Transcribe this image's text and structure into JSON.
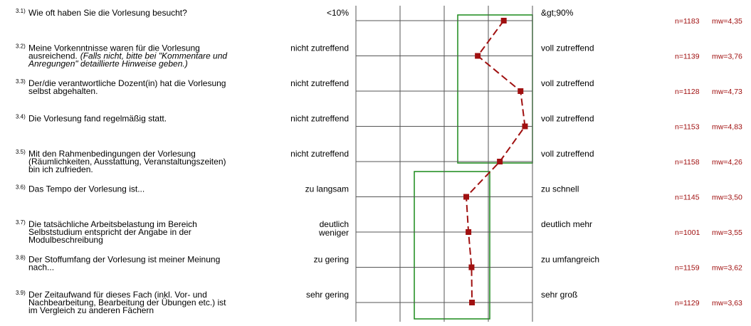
{
  "chart_data": {
    "type": "profile",
    "xlim": [
      1,
      5
    ],
    "xticks": [
      1,
      2,
      3,
      4,
      5
    ],
    "line_color": "#a01010",
    "items": [
      {
        "number": "3.1)",
        "question": [
          "Wie oft haben Sie die Vorlesung besucht?"
        ],
        "left": [
          "<10%"
        ],
        "right": "&gt;90%",
        "n_label": "n=1183",
        "value": 4.35,
        "value_label": "mw=4,35"
      },
      {
        "number": "3.2)",
        "question": [
          "Meine Vorkenntnisse waren für die Vorlesung",
          "ausreichend."
        ],
        "note": [
          "(Falls nicht, bitte bei \"Kommentare und",
          "Anregungen\" detaillierte Hinweise geben.)"
        ],
        "left": [
          "nicht zutreffend"
        ],
        "right": "voll zutreffend",
        "n_label": "n=1139",
        "value": 3.76,
        "value_label": "mw=3,76"
      },
      {
        "number": "3.3)",
        "question": [
          "Der/die verantwortliche Dozent(in) hat die Vorlesung",
          "selbst abgehalten."
        ],
        "left": [
          "nicht zutreffend"
        ],
        "right": "voll zutreffend",
        "n_label": "n=1128",
        "value": 4.73,
        "value_label": "mw=4,73"
      },
      {
        "number": "3.4)",
        "question": [
          "Die Vorlesung fand regelmäßig statt."
        ],
        "left": [
          "nicht zutreffend"
        ],
        "right": "voll zutreffend",
        "n_label": "n=1153",
        "value": 4.83,
        "value_label": "mw=4,83"
      },
      {
        "number": "3.5)",
        "question": [
          "Mit den Rahmenbedingungen der Vorlesung",
          "(Räumlichkeiten, Ausstattung, Veranstaltungszeiten)",
          "bin ich zufrieden."
        ],
        "left": [
          "nicht zutreffend"
        ],
        "right": "voll zutreffend",
        "n_label": "n=1158",
        "value": 4.26,
        "value_label": "mw=4,26"
      },
      {
        "number": "3.6)",
        "question": [
          "Das Tempo der Vorlesung ist..."
        ],
        "left": [
          "zu langsam"
        ],
        "right": "zu schnell",
        "n_label": "n=1145",
        "value": 3.5,
        "value_label": "mw=3,50"
      },
      {
        "number": "3.7)",
        "question": [
          "Die tatsächliche Arbeitsbelastung im Bereich",
          "Selbststudium entspricht der Angabe in der",
          "Modulbeschreibung"
        ],
        "left": [
          "deutlich",
          "weniger"
        ],
        "right": "deutlich mehr",
        "n_label": "n=1001",
        "value": 3.55,
        "value_label": "mw=3,55"
      },
      {
        "number": "3.8)",
        "question": [
          "Der Stoffumfang der Vorlesung ist meiner Meinung",
          "nach..."
        ],
        "left": [
          "zu gering"
        ],
        "right": "zu umfangreich",
        "n_label": "n=1159",
        "value": 3.62,
        "value_label": "mw=3,62"
      },
      {
        "number": "3.9)",
        "question": [
          "Der Zeitaufwand für dieses Fach (inkl. Vor- und",
          "Nachbearbeitung, Bearbeitung der Übungen etc.) ist",
          "im Vergleich zu anderen Fächern"
        ],
        "left": [
          "sehr gering"
        ],
        "right": "sehr groß",
        "n_label": "n=1129",
        "value": 3.63,
        "value_label": "mw=3,63"
      }
    ]
  }
}
